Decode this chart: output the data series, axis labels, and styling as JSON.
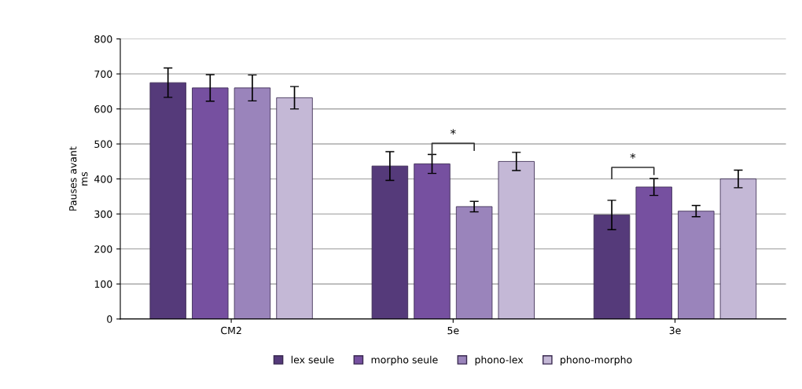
{
  "chart_data": {
    "type": "bar",
    "ylabel": "Pauses avant\nms",
    "categories": [
      "CM2",
      "5e",
      "3e"
    ],
    "series": [
      {
        "name": "lex seule",
        "color": "#553a7a",
        "values": [
          675,
          437,
          297
        ],
        "errors": [
          42,
          41,
          42
        ]
      },
      {
        "name": "morpho seule",
        "color": "#7650a0",
        "values": [
          660,
          443,
          377
        ],
        "errors": [
          38,
          27,
          24
        ]
      },
      {
        "name": "phono-lex",
        "color": "#9a84bb",
        "values": [
          660,
          321,
          308
        ],
        "errors": [
          37,
          15,
          16
        ]
      },
      {
        "name": "phono-morpho",
        "color": "#c4b8d6",
        "values": [
          632,
          450,
          400
        ],
        "errors": [
          32,
          26,
          25
        ]
      }
    ],
    "annotations": [
      "*",
      "*"
    ],
    "ylim": [
      0,
      800
    ],
    "yticks": [
      0,
      100,
      200,
      300,
      400,
      500,
      600,
      700,
      800
    ],
    "grid": "y",
    "legend": "bottom"
  }
}
